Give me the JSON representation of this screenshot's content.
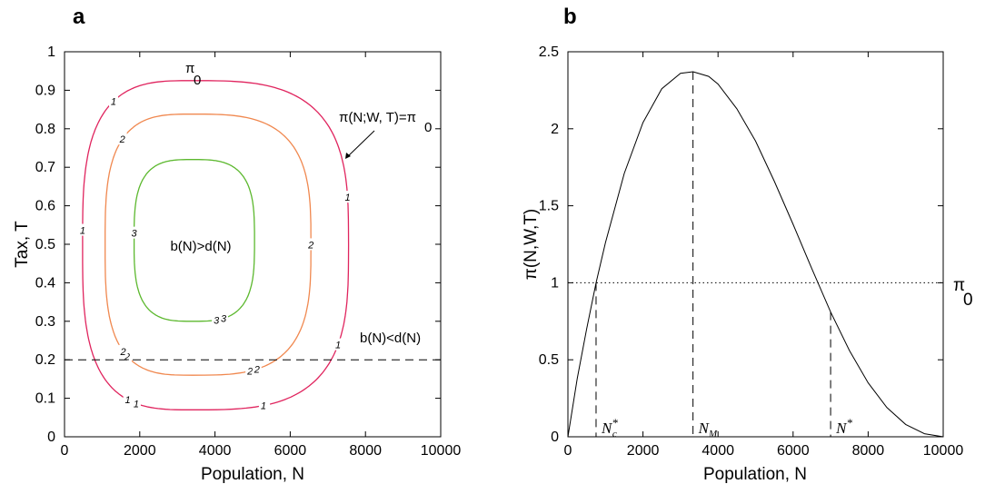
{
  "chart_data": [
    {
      "panel": "a",
      "type": "contour",
      "xlabel": "Population, N",
      "ylabel": "Tax, T",
      "xlim": [
        0,
        10000
      ],
      "ylim": [
        0,
        1
      ],
      "xticks": [
        0,
        2000,
        4000,
        6000,
        8000,
        10000
      ],
      "yticks": [
        0,
        0.1,
        0.2,
        0.3,
        0.4,
        0.5,
        0.6,
        0.7,
        0.8,
        0.9,
        1
      ],
      "grid": false,
      "contours": [
        {
          "level": 1,
          "label": "1",
          "color": "#e0245e",
          "n_min": 480,
          "n_max": 7550,
          "n_center": 3400,
          "t_min": 0.07,
          "t_max": 0.925
        },
        {
          "level": 2,
          "label": "2",
          "color": "#f0884f",
          "n_min": 1080,
          "n_max": 6550,
          "n_center": 3400,
          "t_min": 0.16,
          "t_max": 0.838
        },
        {
          "level": 3,
          "label": "3",
          "color": "#5cb82e",
          "n_min": 1850,
          "n_max": 5050,
          "n_center": 3400,
          "t_min": 0.3,
          "t_max": 0.72
        }
      ],
      "threshold_line": {
        "t": 0.2,
        "style": "dashed"
      },
      "annotations": {
        "pi0": "π",
        "pi0_sub": "0",
        "contour_eq": "π(N;W, T)=π",
        "contour_eq_sub": "0",
        "inside": "b(N)>d(N)",
        "outside": "b(N)<d(N)"
      }
    },
    {
      "panel": "b",
      "type": "line",
      "xlabel": "Population, N",
      "ylabel": "π(N,W,T)",
      "xlim": [
        0,
        10000
      ],
      "ylim": [
        0,
        2.5
      ],
      "xticks": [
        0,
        2000,
        4000,
        6000,
        8000,
        10000
      ],
      "yticks": [
        0,
        0.5,
        1,
        1.5,
        2,
        2.5
      ],
      "grid": false,
      "series": [
        {
          "x": [
            0,
            250,
            500,
            750,
            1000,
            1500,
            2000,
            2500,
            3000,
            3333,
            3750,
            4000,
            4500,
            5000,
            5500,
            6000,
            6500,
            7000,
            7500,
            8000,
            8500,
            9000,
            9500,
            10000
          ],
          "y": [
            0,
            0.38,
            0.7,
            1.0,
            1.26,
            1.71,
            2.04,
            2.26,
            2.36,
            2.37,
            2.34,
            2.29,
            2.13,
            1.92,
            1.66,
            1.38,
            1.09,
            0.81,
            0.56,
            0.35,
            0.19,
            0.08,
            0.02,
            0
          ]
        }
      ],
      "reference_line": {
        "y": 1,
        "style": "dotted",
        "label": "π",
        "label_sub": "0"
      },
      "markers": [
        {
          "x": 750,
          "label": "N",
          "sup": "*",
          "sub": "c"
        },
        {
          "x": 3333,
          "label": "N",
          "sup": "",
          "sub": "M"
        },
        {
          "x": 7000,
          "label": "N",
          "sup": "*",
          "sub": ""
        }
      ]
    }
  ]
}
